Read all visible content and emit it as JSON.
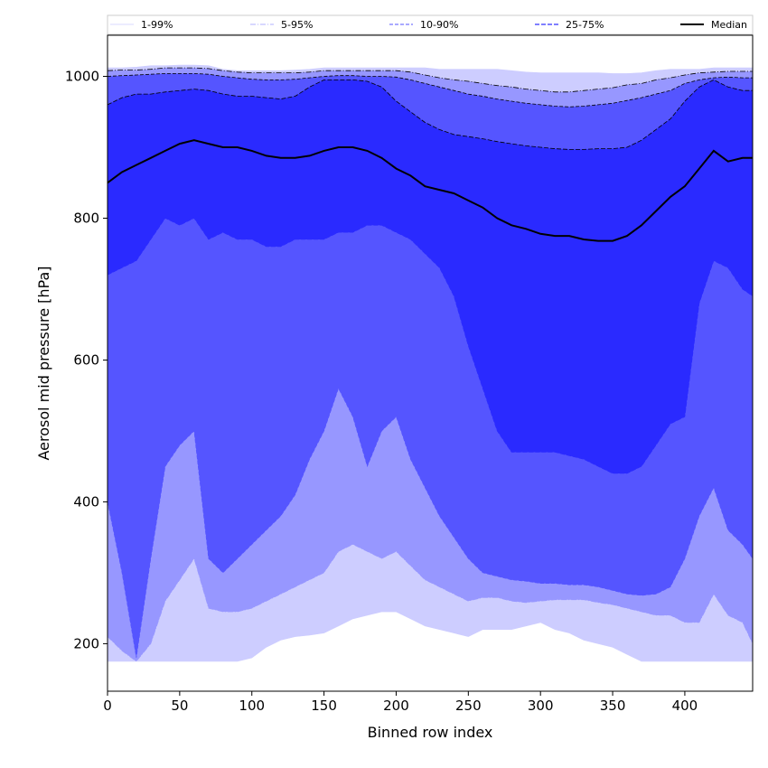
{
  "chart_data": {
    "type": "area",
    "title": "",
    "xlabel": "Binned row index",
    "ylabel": "Aerosol mid pressure [hPa]",
    "xlim": [
      0,
      447
    ],
    "ylim": [
      133,
      1058
    ],
    "xticks": [
      0,
      50,
      100,
      150,
      200,
      250,
      300,
      350,
      400
    ],
    "yticks": [
      200,
      400,
      600,
      800,
      1000
    ],
    "grid": false,
    "legend_position": "top",
    "legend": [
      {
        "label": "1-99%",
        "style": "solid-thin",
        "color": "#cdcdff"
      },
      {
        "label": "5-95%",
        "style": "dashdot",
        "color": "#9797ff"
      },
      {
        "label": "10-90%",
        "style": "dashed",
        "color": "#5555ff"
      },
      {
        "label": "25-75%",
        "style": "dashed",
        "color": "#2a2aff"
      },
      {
        "label": "Median",
        "style": "solid-thick",
        "color": "#000000"
      }
    ],
    "colors": {
      "band_1_99": "#cdcdff",
      "band_5_95": "#9797ff",
      "band_10_90": "#5555ff",
      "band_25_75": "#2a2aff",
      "median": "#000000"
    },
    "x": [
      0,
      10,
      20,
      30,
      40,
      50,
      60,
      70,
      80,
      90,
      100,
      110,
      120,
      130,
      140,
      150,
      160,
      170,
      180,
      190,
      200,
      210,
      220,
      230,
      240,
      250,
      260,
      270,
      280,
      290,
      300,
      310,
      320,
      330,
      340,
      350,
      360,
      370,
      380,
      390,
      400,
      410,
      420,
      430,
      440,
      447
    ],
    "series": [
      {
        "name": "1-99%",
        "lower": [
          175,
          175,
          175,
          175,
          175,
          175,
          175,
          175,
          175,
          175,
          180,
          195,
          205,
          210,
          212,
          215,
          225,
          235,
          240,
          245,
          245,
          235,
          225,
          220,
          215,
          210,
          220,
          220,
          220,
          225,
          230,
          220,
          215,
          205,
          200,
          195,
          185,
          175,
          175,
          175,
          175,
          175,
          175,
          175,
          175,
          175
        ],
        "upper": [
          1012,
          1012,
          1013,
          1015,
          1015,
          1016,
          1016,
          1015,
          1010,
          1008,
          1008,
          1008,
          1008,
          1009,
          1010,
          1012,
          1012,
          1012,
          1012,
          1012,
          1012,
          1012,
          1012,
          1010,
          1010,
          1010,
          1010,
          1010,
          1008,
          1006,
          1005,
          1005,
          1005,
          1005,
          1005,
          1004,
          1004,
          1005,
          1008,
          1010,
          1010,
          1010,
          1012,
          1012,
          1012,
          1012
        ]
      },
      {
        "name": "5-95%",
        "lower": [
          210,
          190,
          175,
          200,
          260,
          290,
          320,
          250,
          245,
          245,
          250,
          260,
          270,
          280,
          290,
          300,
          330,
          340,
          330,
          320,
          330,
          310,
          290,
          280,
          270,
          260,
          265,
          265,
          260,
          258,
          260,
          262,
          262,
          262,
          258,
          255,
          250,
          245,
          240,
          240,
          230,
          230,
          270,
          240,
          230,
          200
        ],
        "upper": [
          1008,
          1009,
          1009,
          1010,
          1012,
          1012,
          1012,
          1011,
          1008,
          1006,
          1005,
          1005,
          1005,
          1005,
          1006,
          1008,
          1008,
          1008,
          1008,
          1008,
          1008,
          1006,
          1002,
          998,
          995,
          993,
          990,
          987,
          985,
          982,
          980,
          978,
          978,
          980,
          982,
          984,
          988,
          990,
          995,
          998,
          1002,
          1005,
          1006,
          1007,
          1007,
          1007
        ]
      },
      {
        "name": "10-90%",
        "lower": [
          400,
          300,
          180,
          320,
          450,
          480,
          500,
          320,
          300,
          320,
          340,
          360,
          380,
          410,
          460,
          500,
          560,
          520,
          450,
          500,
          520,
          460,
          420,
          380,
          350,
          320,
          300,
          295,
          290,
          288,
          285,
          285,
          283,
          283,
          280,
          275,
          270,
          268,
          270,
          280,
          320,
          380,
          420,
          360,
          340,
          320
        ],
        "upper": [
          1000,
          1001,
          1002,
          1003,
          1004,
          1004,
          1004,
          1003,
          1000,
          998,
          996,
          995,
          995,
          996,
          998,
          1000,
          1001,
          1001,
          1000,
          1000,
          999,
          995,
          990,
          985,
          980,
          975,
          972,
          968,
          965,
          962,
          960,
          958,
          957,
          958,
          960,
          962,
          966,
          970,
          975,
          980,
          990,
          995,
          998,
          999,
          998,
          998
        ]
      },
      {
        "name": "25-75%",
        "lower": [
          720,
          730,
          740,
          770,
          800,
          790,
          800,
          770,
          780,
          770,
          770,
          760,
          760,
          770,
          770,
          770,
          780,
          780,
          790,
          790,
          780,
          770,
          750,
          730,
          690,
          620,
          560,
          500,
          470,
          470,
          470,
          470,
          465,
          460,
          450,
          440,
          440,
          450,
          480,
          510,
          520,
          680,
          740,
          730,
          700,
          690
        ],
        "upper": [
          960,
          970,
          975,
          975,
          978,
          980,
          982,
          980,
          975,
          972,
          972,
          970,
          968,
          972,
          985,
          995,
          995,
          995,
          993,
          985,
          965,
          950,
          935,
          925,
          918,
          915,
          912,
          908,
          905,
          902,
          900,
          898,
          897,
          897,
          898,
          898,
          900,
          910,
          925,
          940,
          965,
          985,
          995,
          985,
          980,
          980
        ]
      },
      {
        "name": "Median",
        "values": [
          850,
          865,
          875,
          885,
          895,
          905,
          910,
          905,
          900,
          900,
          895,
          888,
          885,
          885,
          888,
          895,
          900,
          900,
          895,
          885,
          870,
          860,
          845,
          840,
          835,
          825,
          815,
          800,
          790,
          785,
          778,
          775,
          775,
          770,
          768,
          768,
          775,
          790,
          810,
          830,
          845,
          870,
          895,
          880,
          885,
          885
        ]
      }
    ]
  }
}
